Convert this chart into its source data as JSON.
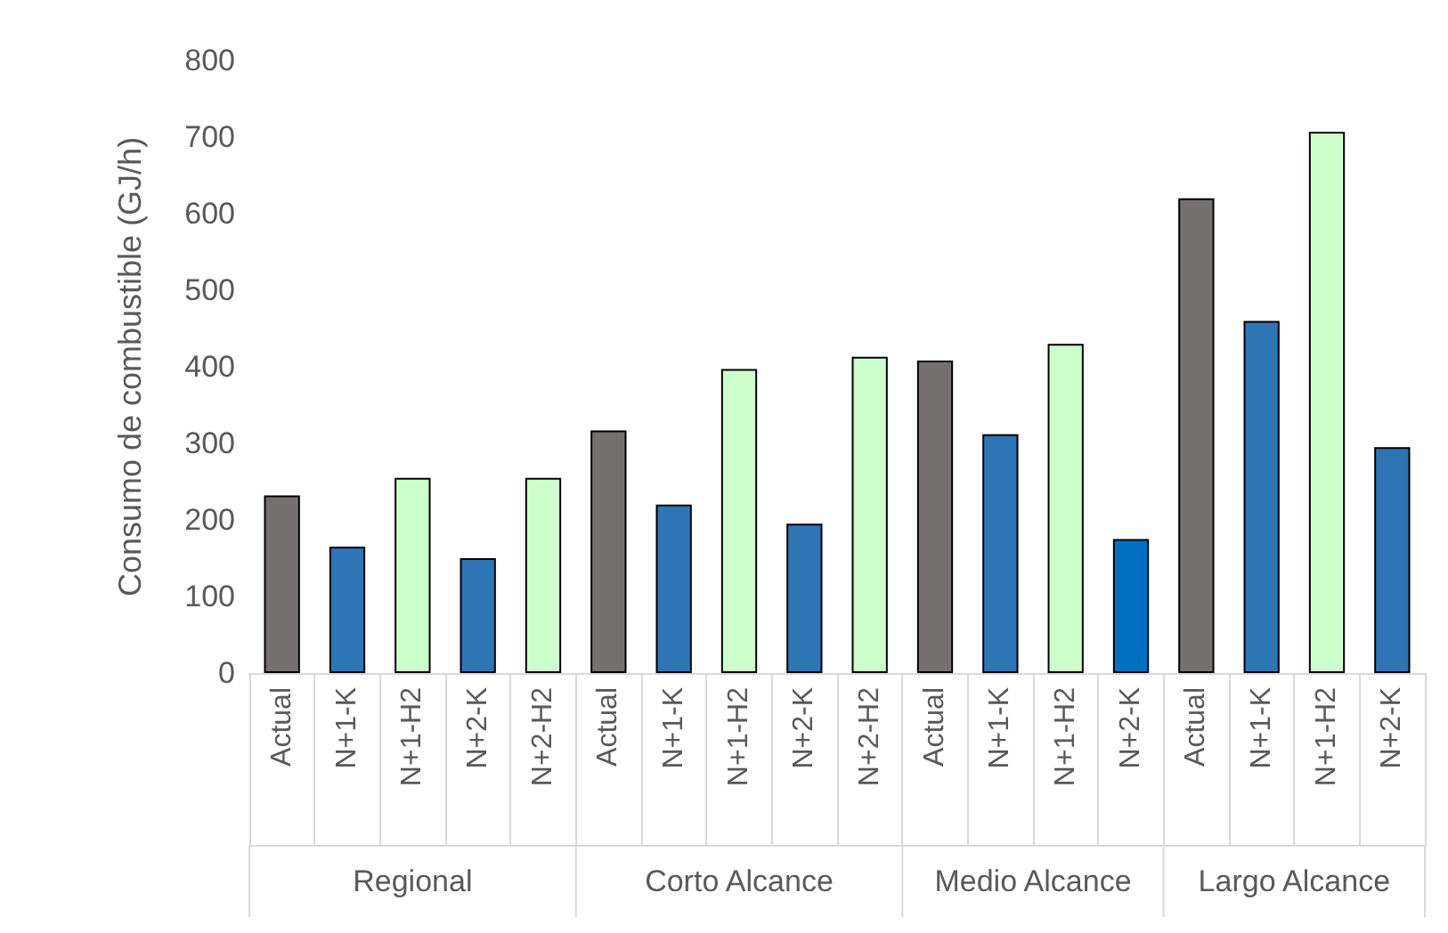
{
  "chart_data": {
    "type": "bar",
    "ylabel": "Consumo de combustible (GJ/h)",
    "categories": [
      "Actual",
      "N+1-K",
      "N+1-H2",
      "N+2-K",
      "N+2-H2",
      "Actual",
      "N+1-K",
      "N+1-H2",
      "N+2-K",
      "N+2-H2",
      "Actual",
      "N+1-K",
      "N+1-H2",
      "N+2-K",
      "Actual",
      "N+1-K",
      "N+1-H2",
      "N+2-K"
    ],
    "values": [
      232,
      165,
      255,
      150,
      255,
      317,
      220,
      397,
      195,
      413,
      408,
      312,
      430,
      175,
      620,
      460,
      707,
      295
    ],
    "colors": [
      "#767171",
      "#2e75b6",
      "#ccffcc",
      "#2e75b6",
      "#ccffcc",
      "#767171",
      "#2e75b6",
      "#ccffcc",
      "#2e75b6",
      "#ccffcc",
      "#767171",
      "#2e75b6",
      "#ccffcc",
      "#0070c0",
      "#767171",
      "#2e75b6",
      "#ccffcc",
      "#2e75b6"
    ],
    "annotations": [
      "Regional",
      "Corto Alcance",
      "Medio Alcance",
      "Largo Alcance"
    ],
    "ylim": [
      0,
      800
    ],
    "yticks": [
      0,
      100,
      200,
      300,
      400,
      500,
      600,
      700,
      800
    ],
    "grid": false
  }
}
